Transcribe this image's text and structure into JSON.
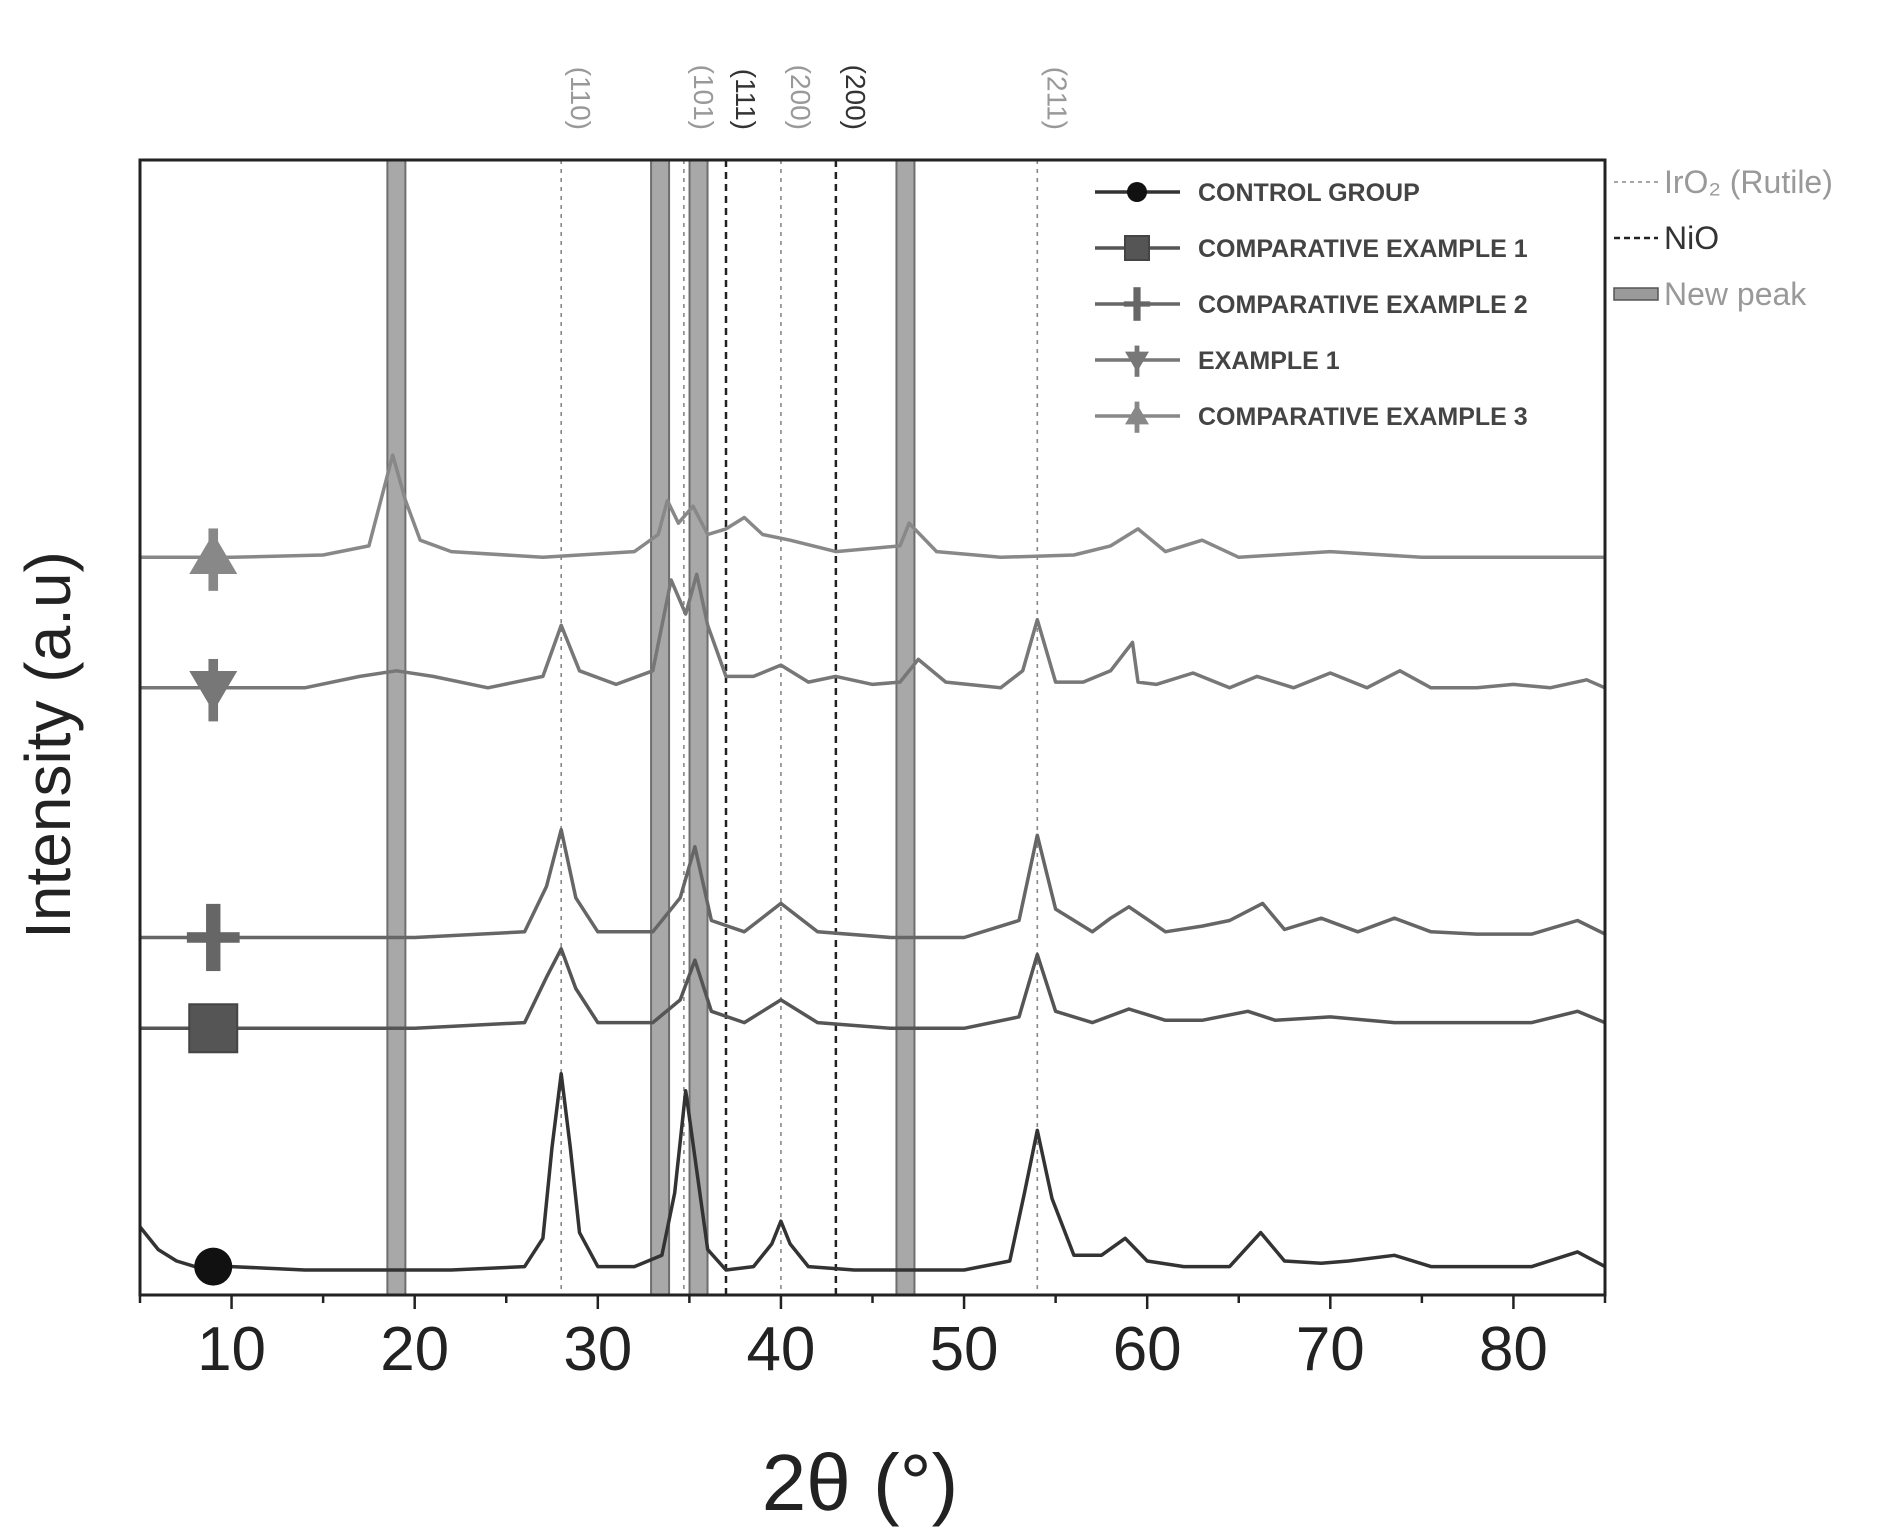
{
  "chart_data": {
    "type": "line",
    "title": "",
    "xlabel": "2θ (°)",
    "ylabel": "Intensity (a.u)",
    "xlim": [
      5,
      85
    ],
    "ylim": [
      0,
      10
    ],
    "xticks": [
      10,
      20,
      30,
      40,
      50,
      60,
      70,
      80
    ],
    "grid": false,
    "legend_position": "top-right",
    "series": [
      {
        "name": "CONTROL GROUP",
        "marker": "circle",
        "color": "#333333",
        "x": [
          5.0,
          6.0,
          7.0,
          8.0,
          9.0,
          10.0,
          14.0,
          18.0,
          22.0,
          26.0,
          27.0,
          27.5,
          28.0,
          28.5,
          29.0,
          30.0,
          32.0,
          33.5,
          34.2,
          34.8,
          35.4,
          36.0,
          37.0,
          38.5,
          39.5,
          40.0,
          40.5,
          41.5,
          44.0,
          47.0,
          50.0,
          52.5,
          53.3,
          54.0,
          54.8,
          56.0,
          57.5,
          58.8,
          60.0,
          62.0,
          64.5,
          66.2,
          67.5,
          69.5,
          71.0,
          73.5,
          75.5,
          78.0,
          81.0,
          83.5,
          85.0
        ],
        "y": [
          0.6,
          0.4,
          0.3,
          0.25,
          0.25,
          0.25,
          0.22,
          0.22,
          0.22,
          0.25,
          0.5,
          1.3,
          1.95,
          1.3,
          0.55,
          0.25,
          0.25,
          0.35,
          0.9,
          1.8,
          1.1,
          0.4,
          0.22,
          0.25,
          0.45,
          0.65,
          0.45,
          0.25,
          0.22,
          0.22,
          0.22,
          0.3,
          0.9,
          1.45,
          0.85,
          0.35,
          0.35,
          0.5,
          0.3,
          0.25,
          0.25,
          0.55,
          0.3,
          0.28,
          0.3,
          0.35,
          0.25,
          0.25,
          0.25,
          0.38,
          0.25
        ]
      },
      {
        "name": "COMPARATIVE EXAMPLE 1",
        "marker": "square",
        "color": "#555555",
        "x": [
          5.0,
          10.0,
          20.0,
          26.0,
          27.2,
          28.0,
          28.8,
          30.0,
          33.0,
          34.5,
          35.3,
          36.2,
          38.0,
          40.0,
          42.0,
          46.0,
          50.0,
          53.0,
          54.0,
          55.0,
          57.0,
          59.0,
          61.0,
          63.0,
          65.5,
          67.0,
          70.0,
          73.5,
          77.0,
          81.0,
          83.5,
          85.0
        ],
        "y": [
          2.35,
          2.35,
          2.35,
          2.4,
          2.8,
          3.05,
          2.7,
          2.4,
          2.4,
          2.6,
          2.95,
          2.5,
          2.4,
          2.6,
          2.4,
          2.35,
          2.35,
          2.45,
          3.0,
          2.5,
          2.4,
          2.52,
          2.42,
          2.42,
          2.5,
          2.42,
          2.45,
          2.4,
          2.4,
          2.4,
          2.5,
          2.4
        ]
      },
      {
        "name": "COMPARATIVE EXAMPLE 2",
        "marker": "plus",
        "color": "#666666",
        "x": [
          5.0,
          10.0,
          20.0,
          26.0,
          27.2,
          28.0,
          28.8,
          30.0,
          33.0,
          34.5,
          35.3,
          36.2,
          38.0,
          40.0,
          42.0,
          46.0,
          50.0,
          53.0,
          54.0,
          55.0,
          57.0,
          58.0,
          59.0,
          61.0,
          63.0,
          64.5,
          66.3,
          67.5,
          69.5,
          71.5,
          73.5,
          75.5,
          78.0,
          81.0,
          83.5,
          85.0
        ],
        "y": [
          3.15,
          3.15,
          3.15,
          3.2,
          3.6,
          4.1,
          3.5,
          3.2,
          3.2,
          3.5,
          3.95,
          3.3,
          3.2,
          3.45,
          3.2,
          3.15,
          3.15,
          3.3,
          4.05,
          3.4,
          3.2,
          3.32,
          3.42,
          3.2,
          3.25,
          3.3,
          3.45,
          3.22,
          3.32,
          3.2,
          3.32,
          3.2,
          3.18,
          3.18,
          3.3,
          3.18
        ]
      },
      {
        "name": "EXAMPLE 1",
        "marker": "triangle-down",
        "color": "#777777",
        "x": [
          5.0,
          10.0,
          14.0,
          17.0,
          19.0,
          21.0,
          24.0,
          27.0,
          28.0,
          29.0,
          31.0,
          33.0,
          34.0,
          34.8,
          35.4,
          36.0,
          37.0,
          38.5,
          40.0,
          41.5,
          43.0,
          45.0,
          46.5,
          47.5,
          49.0,
          52.0,
          53.2,
          54.0,
          55.0,
          56.5,
          58.0,
          59.2,
          59.5,
          60.5,
          62.5,
          64.5,
          66.0,
          68.0,
          70.0,
          72.0,
          73.8,
          75.5,
          78.0,
          80.0,
          82.0,
          84.0,
          85.0
        ],
        "y": [
          5.35,
          5.35,
          5.35,
          5.45,
          5.5,
          5.45,
          5.35,
          5.45,
          5.9,
          5.5,
          5.38,
          5.5,
          6.3,
          6.0,
          6.35,
          5.9,
          5.45,
          5.45,
          5.55,
          5.4,
          5.45,
          5.38,
          5.4,
          5.6,
          5.4,
          5.35,
          5.5,
          5.95,
          5.4,
          5.4,
          5.5,
          5.75,
          5.4,
          5.38,
          5.48,
          5.35,
          5.45,
          5.35,
          5.48,
          5.35,
          5.5,
          5.35,
          5.35,
          5.38,
          5.35,
          5.42,
          5.35
        ]
      },
      {
        "name": "COMPARATIVE EXAMPLE 3",
        "marker": "triangle-up",
        "color": "#888888",
        "x": [
          5.0,
          10.0,
          15.0,
          17.5,
          18.8,
          19.5,
          20.3,
          22.0,
          27.0,
          32.0,
          33.3,
          33.8,
          34.4,
          35.2,
          36.0,
          37.0,
          38.0,
          39.0,
          40.5,
          43.0,
          46.5,
          47.0,
          48.5,
          52.0,
          56.0,
          58.0,
          59.5,
          61.0,
          63.0,
          65.0,
          70.0,
          75.0,
          80.0,
          85.0
        ],
        "y": [
          6.5,
          6.5,
          6.52,
          6.6,
          7.4,
          7.0,
          6.65,
          6.55,
          6.5,
          6.55,
          6.7,
          7.0,
          6.8,
          6.95,
          6.7,
          6.75,
          6.85,
          6.7,
          6.65,
          6.55,
          6.6,
          6.8,
          6.55,
          6.5,
          6.52,
          6.6,
          6.75,
          6.55,
          6.65,
          6.5,
          6.55,
          6.5,
          6.5,
          6.5
        ]
      }
    ],
    "reference_lines": [
      {
        "phase": "IrO2 (Rutile)",
        "hkl": "(110)",
        "x": 28.0
      },
      {
        "phase": "IrO2 (Rutile)",
        "hkl": "(101)",
        "x": 34.7
      },
      {
        "phase": "IrO2 (Rutile)",
        "hkl": "(200)",
        "x": 40.0
      },
      {
        "phase": "IrO2 (Rutile)",
        "hkl": "(211)",
        "x": 54.0
      },
      {
        "phase": "NiO",
        "hkl": "(111)",
        "x": 37.0
      },
      {
        "phase": "NiO",
        "hkl": "(200)",
        "x": 43.0
      }
    ],
    "new_peaks": [
      19.0,
      33.4,
      35.5,
      46.8
    ],
    "reference_legend": [
      {
        "key": "rutile",
        "label": "IrO₂ (Rutile)"
      },
      {
        "key": "nio",
        "label": "NiO"
      },
      {
        "key": "new",
        "label": "New peak"
      }
    ],
    "colors": {
      "rutile": "#888888",
      "nio": "#222222",
      "new_peak": "#9a9a9a"
    }
  }
}
